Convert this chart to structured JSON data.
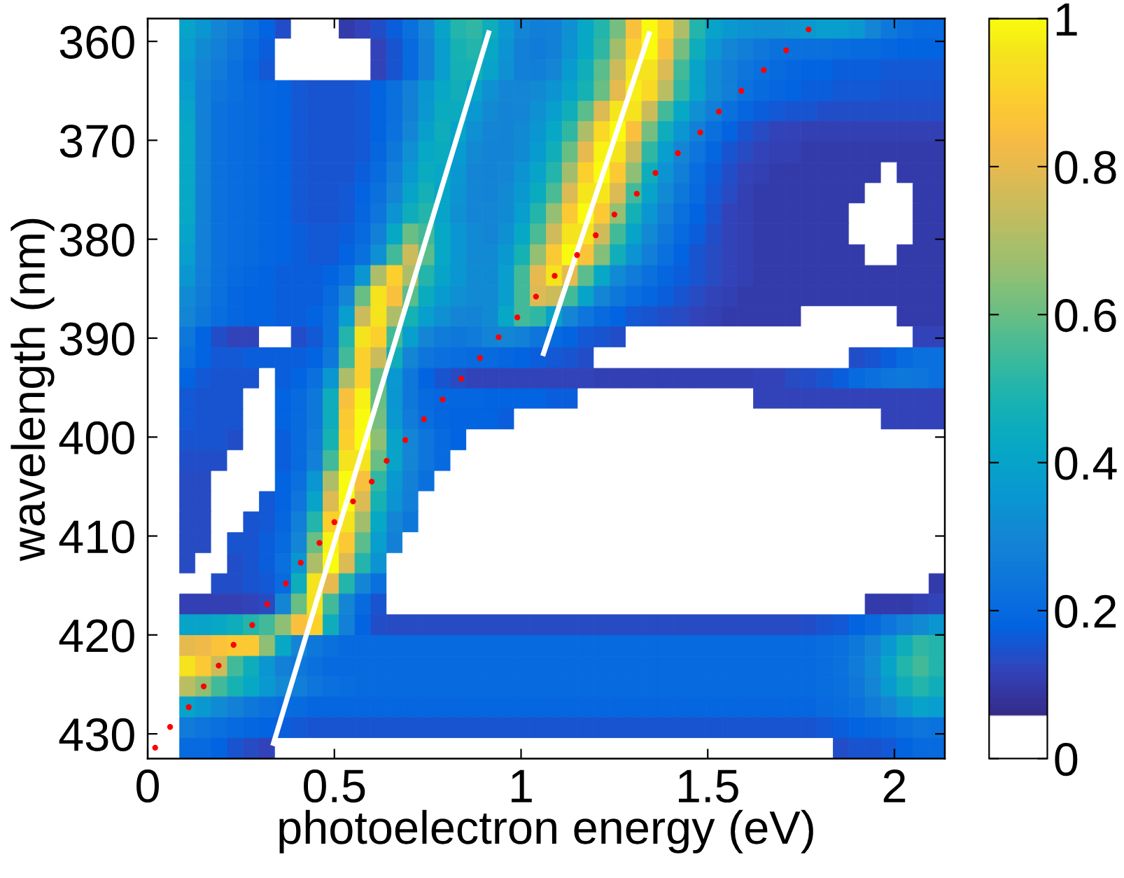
{
  "chart_data": {
    "type": "heatmap",
    "xlabel": "photoelectron energy (eV)",
    "ylabel": "wavelength (nm)",
    "x": [
      0.021,
      0.064,
      0.107,
      0.149,
      0.192,
      0.235,
      0.278,
      0.32,
      0.363,
      0.406,
      0.448,
      0.491,
      0.534,
      0.576,
      0.619,
      0.662,
      0.704,
      0.747,
      0.79,
      0.833,
      0.875,
      0.918,
      0.961,
      1.003,
      1.046,
      1.089,
      1.131,
      1.174,
      1.217,
      1.26,
      1.302,
      1.345,
      1.388,
      1.43,
      1.473,
      1.516,
      1.559,
      1.601,
      1.644,
      1.687,
      1.729,
      1.772,
      1.815,
      1.857,
      1.9,
      1.943,
      1.986,
      2.028,
      2.071,
      2.114
    ],
    "y": [
      358.7,
      360.8,
      362.9,
      365,
      367.1,
      369.1,
      371.2,
      373.3,
      375.4,
      377.4,
      379.5,
      381.6,
      383.7,
      385.8,
      387.8,
      389.9,
      392,
      394.1,
      396.1,
      398.2,
      400.3,
      402.4,
      404.5,
      406.5,
      408.6,
      410.7,
      412.8,
      414.8,
      416.9,
      419,
      421.1,
      423.2,
      425.2,
      427.3,
      429.4,
      431.5
    ],
    "xlim": [
      0,
      2.135
    ],
    "ylim": [
      432.5,
      357.7
    ],
    "xticks": [
      0,
      0.5,
      1,
      1.5,
      2
    ],
    "yticks": [
      360,
      370,
      380,
      390,
      400,
      410,
      420,
      430
    ],
    "clim": [
      0,
      1
    ],
    "cticks": [
      0,
      0.2,
      0.4,
      0.6,
      0.8,
      1
    ],
    "cells": [
      [
        0,
        0,
        0.4,
        0.35,
        0.3,
        0.26,
        0.22,
        0.18,
        0.14,
        0,
        0,
        0,
        0.1,
        0.12,
        0.14,
        0.17,
        0.22,
        0.3,
        0.4,
        0.5,
        0.52,
        0.45,
        0.36,
        0.3,
        0.27,
        0.28,
        0.33,
        0.42,
        0.5,
        0.62,
        0.85,
        1,
        0.9,
        0.7,
        0.5,
        0.4,
        0.36,
        0.34,
        0.33,
        0.33,
        0.34,
        0.36,
        0.38,
        0.38,
        0.36,
        0.3,
        0.25,
        0.22,
        0.2,
        0.2
      ],
      [
        0,
        0,
        0.38,
        0.32,
        0.28,
        0.24,
        0.2,
        0.17,
        0,
        0,
        0,
        0,
        0,
        0,
        0.12,
        0.15,
        0.2,
        0.28,
        0.38,
        0.48,
        0.5,
        0.42,
        0.34,
        0.28,
        0.26,
        0.28,
        0.34,
        0.42,
        0.52,
        0.68,
        0.9,
        1,
        0.85,
        0.62,
        0.45,
        0.35,
        0.3,
        0.27,
        0.25,
        0.23,
        0.22,
        0.22,
        0.22,
        0.21,
        0.2,
        0.2,
        0.19,
        0.18,
        0.18,
        0.18
      ],
      [
        0,
        0,
        0.36,
        0.3,
        0.26,
        0.22,
        0.19,
        0.16,
        0,
        0,
        0,
        0,
        0,
        0,
        0.12,
        0.15,
        0.2,
        0.28,
        0.38,
        0.47,
        0.48,
        0.4,
        0.33,
        0.28,
        0.27,
        0.3,
        0.37,
        0.46,
        0.58,
        0.75,
        0.95,
        0.95,
        0.78,
        0.55,
        0.4,
        0.32,
        0.27,
        0.24,
        0.22,
        0.2,
        0.19,
        0.18,
        0.18,
        0.17,
        0.17,
        0.17,
        0.16,
        0.16,
        0.16,
        0.16
      ],
      [
        0,
        0,
        0.38,
        0.28,
        0.24,
        0.22,
        0.2,
        0.19,
        0.18,
        0.16,
        0.15,
        0.15,
        0.15,
        0.16,
        0.18,
        0.22,
        0.28,
        0.35,
        0.42,
        0.46,
        0.4,
        0.33,
        0.3,
        0.3,
        0.31,
        0.34,
        0.4,
        0.48,
        0.6,
        0.8,
        0.97,
        0.92,
        0.72,
        0.52,
        0.4,
        0.32,
        0.27,
        0.23,
        0.2,
        0.19,
        0.18,
        0.17,
        0.17,
        0.16,
        0.16,
        0.16,
        0.15,
        0.15,
        0.15,
        0.15
      ],
      [
        0,
        0,
        0.4,
        0.28,
        0.23,
        0.21,
        0.2,
        0.19,
        0.18,
        0.16,
        0.15,
        0.15,
        0.15,
        0.16,
        0.18,
        0.22,
        0.28,
        0.36,
        0.44,
        0.44,
        0.36,
        0.31,
        0.29,
        0.3,
        0.33,
        0.38,
        0.46,
        0.58,
        0.78,
        0.96,
        0.95,
        0.75,
        0.55,
        0.42,
        0.33,
        0.27,
        0.22,
        0.19,
        0.17,
        0.16,
        0.15,
        0.15,
        0.14,
        0.14,
        0.14,
        0.14,
        0.14,
        0.14,
        0.14,
        0.14
      ],
      [
        0,
        0,
        0.42,
        0.28,
        0.23,
        0.21,
        0.2,
        0.19,
        0.18,
        0.16,
        0.15,
        0.15,
        0.15,
        0.16,
        0.18,
        0.23,
        0.3,
        0.39,
        0.45,
        0.4,
        0.33,
        0.3,
        0.29,
        0.31,
        0.35,
        0.42,
        0.52,
        0.7,
        0.92,
        1,
        0.85,
        0.62,
        0.45,
        0.35,
        0.28,
        0.22,
        0.18,
        0.15,
        0.13,
        0.12,
        0.12,
        0.11,
        0.11,
        0.11,
        0.11,
        0.11,
        0.11,
        0.11,
        0.11,
        0.11
      ],
      [
        0,
        0,
        0.42,
        0.28,
        0.23,
        0.21,
        0.2,
        0.19,
        0.18,
        0.16,
        0.15,
        0.15,
        0.15,
        0.16,
        0.19,
        0.25,
        0.33,
        0.42,
        0.44,
        0.37,
        0.31,
        0.29,
        0.29,
        0.32,
        0.37,
        0.46,
        0.6,
        0.8,
        0.98,
        0.96,
        0.75,
        0.52,
        0.38,
        0.3,
        0.24,
        0.19,
        0.15,
        0.13,
        0.12,
        0.11,
        0.11,
        0.1,
        0.1,
        0.1,
        0.1,
        0.1,
        0.1,
        0.1,
        0.1,
        0.1
      ],
      [
        0,
        0,
        0.42,
        0.28,
        0.23,
        0.21,
        0.2,
        0.19,
        0.18,
        0.16,
        0.15,
        0.15,
        0.15,
        0.17,
        0.2,
        0.27,
        0.36,
        0.44,
        0.42,
        0.35,
        0.3,
        0.29,
        0.3,
        0.34,
        0.4,
        0.5,
        0.68,
        0.9,
        1,
        0.88,
        0.65,
        0.45,
        0.34,
        0.27,
        0.21,
        0.17,
        0.14,
        0.12,
        0.11,
        0.1,
        0.1,
        0.1,
        0.1,
        0.1,
        0.1,
        0.1,
        0,
        0.1,
        0.1,
        0.1
      ],
      [
        0,
        0,
        0.42,
        0.28,
        0.23,
        0.21,
        0.2,
        0.19,
        0.18,
        0.16,
        0.15,
        0.15,
        0.16,
        0.18,
        0.22,
        0.3,
        0.4,
        0.47,
        0.41,
        0.34,
        0.3,
        0.29,
        0.31,
        0.36,
        0.44,
        0.56,
        0.78,
        0.96,
        0.96,
        0.78,
        0.55,
        0.4,
        0.31,
        0.25,
        0.2,
        0.16,
        0.13,
        0.11,
        0.1,
        0.1,
        0.1,
        0.1,
        0.1,
        0.1,
        0.1,
        0,
        0,
        0,
        0.1,
        0.1
      ],
      [
        0,
        0,
        0.42,
        0.28,
        0.23,
        0.21,
        0.2,
        0.19,
        0.18,
        0.16,
        0.15,
        0.15,
        0.16,
        0.19,
        0.24,
        0.34,
        0.45,
        0.5,
        0.4,
        0.33,
        0.3,
        0.3,
        0.32,
        0.38,
        0.5,
        0.66,
        0.88,
        1,
        0.88,
        0.66,
        0.47,
        0.35,
        0.28,
        0.22,
        0.18,
        0.15,
        0.12,
        0.11,
        0.1,
        0.1,
        0.1,
        0.1,
        0.1,
        0.1,
        0,
        0,
        0,
        0,
        0.1,
        0.1
      ],
      [
        0,
        0,
        0.4,
        0.28,
        0.23,
        0.21,
        0.2,
        0.19,
        0.18,
        0.17,
        0.16,
        0.16,
        0.17,
        0.2,
        0.28,
        0.42,
        0.6,
        0.55,
        0.42,
        0.35,
        0.31,
        0.3,
        0.33,
        0.42,
        0.56,
        0.76,
        0.95,
        0.95,
        0.76,
        0.55,
        0.4,
        0.31,
        0.25,
        0.2,
        0.17,
        0.14,
        0.12,
        0.11,
        0.1,
        0.1,
        0.1,
        0.1,
        0.1,
        0.1,
        0,
        0,
        0,
        0,
        0.1,
        0.1
      ],
      [
        0,
        0,
        0.38,
        0.28,
        0.23,
        0.21,
        0.2,
        0.19,
        0.18,
        0.17,
        0.16,
        0.16,
        0.18,
        0.22,
        0.33,
        0.55,
        0.75,
        0.58,
        0.42,
        0.35,
        0.31,
        0.31,
        0.36,
        0.48,
        0.66,
        0.88,
        1,
        0.86,
        0.64,
        0.46,
        0.34,
        0.27,
        0.22,
        0.18,
        0.15,
        0.13,
        0.12,
        0.11,
        0.1,
        0.1,
        0.1,
        0.1,
        0.1,
        0.1,
        0.1,
        0,
        0,
        0.1,
        0.1,
        0.1
      ],
      [
        0,
        0,
        0.35,
        0.27,
        0.23,
        0.2,
        0.19,
        0.18,
        0.17,
        0.17,
        0.17,
        0.18,
        0.22,
        0.35,
        0.7,
        0.9,
        0.7,
        0.5,
        0.4,
        0.35,
        0.32,
        0.32,
        0.38,
        0.55,
        0.8,
        0.95,
        0.8,
        0.58,
        0.42,
        0.32,
        0.26,
        0.22,
        0.19,
        0.17,
        0.15,
        0.13,
        0.12,
        0.11,
        0.1,
        0.1,
        0.1,
        0.1,
        0.1,
        0.1,
        0.1,
        0.1,
        0.1,
        0.1,
        0.1,
        0.1
      ],
      [
        0,
        0,
        0.32,
        0.26,
        0.22,
        0.19,
        0.18,
        0.18,
        0.17,
        0.17,
        0.17,
        0.2,
        0.3,
        0.6,
        0.95,
        0.85,
        0.58,
        0.44,
        0.37,
        0.33,
        0.31,
        0.32,
        0.38,
        0.55,
        0.78,
        0.75,
        0.55,
        0.4,
        0.3,
        0.25,
        0.21,
        0.19,
        0.17,
        0.15,
        0.13,
        0.12,
        0.11,
        0.1,
        0.1,
        0.1,
        0.1,
        0.1,
        0.1,
        0.1,
        0.1,
        0.1,
        0.1,
        0.1,
        0.1,
        0.1
      ],
      [
        0,
        0,
        0.3,
        0.25,
        0.21,
        0.19,
        0.18,
        0.18,
        0.17,
        0.17,
        0.18,
        0.22,
        0.38,
        0.75,
        0.95,
        0.7,
        0.48,
        0.38,
        0.33,
        0.3,
        0.29,
        0.32,
        0.42,
        0.55,
        0.52,
        0.4,
        0.3,
        0.24,
        0.2,
        0.18,
        0.16,
        0.15,
        0.14,
        0.13,
        0.12,
        0.11,
        0.1,
        0.1,
        0.1,
        0.1,
        0.1,
        0,
        0,
        0,
        0,
        0,
        0,
        0.1,
        0.1,
        0.1
      ],
      [
        0,
        0,
        0.25,
        0.18,
        0.14,
        0.12,
        0.12,
        0,
        0,
        0.14,
        0.16,
        0.22,
        0.5,
        0.95,
        0.9,
        0.55,
        0.38,
        0.3,
        0.26,
        0.25,
        0.26,
        0.29,
        0.3,
        0.28,
        0.24,
        0.2,
        0.18,
        0.16,
        0.15,
        0.14,
        0,
        0,
        0,
        0,
        0,
        0,
        0,
        0,
        0,
        0,
        0,
        0,
        0,
        0,
        0,
        0,
        0,
        0,
        0.12,
        0.12
      ],
      [
        0,
        0,
        0.22,
        0.18,
        0.16,
        0.16,
        0.17,
        0.17,
        0.17,
        0.17,
        0.18,
        0.25,
        0.55,
        0.9,
        0.75,
        0.45,
        0.3,
        0.24,
        0.22,
        0.21,
        0.2,
        0.2,
        0.19,
        0.18,
        0.17,
        0.16,
        0.15,
        0.14,
        0,
        0,
        0,
        0,
        0,
        0,
        0,
        0,
        0,
        0,
        0,
        0,
        0,
        0,
        0,
        0,
        0.14,
        0.15,
        0.17,
        0.2,
        0.22,
        0.22
      ],
      [
        0,
        0,
        0.18,
        0.16,
        0.15,
        0.15,
        0.15,
        0,
        0.17,
        0.18,
        0.22,
        0.35,
        0.7,
        0.9,
        0.6,
        0.36,
        0.25,
        0.18,
        0.15,
        0.13,
        0.12,
        0.12,
        0.12,
        0.12,
        0.12,
        0.12,
        0.12,
        0.12,
        0.11,
        0.11,
        0.11,
        0.11,
        0.11,
        0.11,
        0.11,
        0.11,
        0.11,
        0.11,
        0.12,
        0.12,
        0.13,
        0.14,
        0.15,
        0.17,
        0.2,
        0.22,
        0.24,
        0.25,
        0.24,
        0.22
      ],
      [
        0,
        0,
        0.16,
        0.15,
        0.15,
        0.15,
        0,
        0,
        0.18,
        0.2,
        0.25,
        0.45,
        0.85,
        0.98,
        0.6,
        0.35,
        0.25,
        0.2,
        0.19,
        0.19,
        0.19,
        0.18,
        0.18,
        0.18,
        0.18,
        0.17,
        0.17,
        0,
        0,
        0,
        0,
        0,
        0,
        0,
        0,
        0,
        0,
        0,
        0.12,
        0.12,
        0.12,
        0.12,
        0.12,
        0.12,
        0.12,
        0.12,
        0.12,
        0.12,
        0.12,
        0.12
      ],
      [
        0,
        0,
        0.16,
        0.15,
        0.15,
        0.15,
        0,
        0,
        0.18,
        0.2,
        0.25,
        0.45,
        0.88,
        1,
        0.62,
        0.36,
        0.26,
        0.21,
        0.19,
        0.18,
        0.18,
        0.18,
        0.17,
        0,
        0,
        0,
        0,
        0,
        0,
        0,
        0,
        0,
        0,
        0,
        0,
        0,
        0,
        0,
        0,
        0,
        0,
        0,
        0,
        0,
        0,
        0,
        0.12,
        0.12,
        0.12,
        0.12
      ],
      [
        0,
        0,
        0.15,
        0.15,
        0.15,
        0.14,
        0,
        0,
        0.17,
        0.2,
        0.26,
        0.48,
        0.9,
        1,
        0.65,
        0.4,
        0.3,
        0.24,
        0.2,
        0.18,
        0,
        0,
        0,
        0,
        0,
        0,
        0,
        0,
        0,
        0,
        0,
        0,
        0,
        0,
        0,
        0,
        0,
        0,
        0,
        0,
        0,
        0,
        0,
        0,
        0,
        0,
        0,
        0,
        0,
        0
      ],
      [
        0,
        0,
        0.14,
        0.14,
        0.14,
        0,
        0,
        0,
        0.17,
        0.2,
        0.28,
        0.55,
        0.95,
        0.95,
        0.6,
        0.4,
        0.3,
        0.24,
        0.2,
        0,
        0,
        0,
        0,
        0,
        0,
        0,
        0,
        0,
        0,
        0,
        0,
        0,
        0,
        0,
        0,
        0,
        0,
        0,
        0,
        0,
        0,
        0,
        0,
        0,
        0,
        0,
        0,
        0,
        0,
        0
      ],
      [
        0,
        0,
        0.13,
        0.13,
        0,
        0,
        0,
        0,
        0.18,
        0.22,
        0.35,
        0.7,
        1,
        0.85,
        0.52,
        0.36,
        0.28,
        0.22,
        0,
        0,
        0,
        0,
        0,
        0,
        0,
        0,
        0,
        0,
        0,
        0,
        0,
        0,
        0,
        0,
        0,
        0,
        0,
        0,
        0,
        0,
        0,
        0,
        0,
        0,
        0,
        0,
        0,
        0,
        0,
        0
      ],
      [
        0,
        0,
        0.13,
        0.13,
        0,
        0,
        0,
        0.16,
        0.18,
        0.24,
        0.4,
        0.78,
        1,
        0.78,
        0.48,
        0.34,
        0.27,
        0,
        0,
        0,
        0,
        0,
        0,
        0,
        0,
        0,
        0,
        0,
        0,
        0,
        0,
        0,
        0,
        0,
        0,
        0,
        0,
        0,
        0,
        0,
        0,
        0,
        0,
        0,
        0,
        0,
        0,
        0,
        0,
        0
      ],
      [
        0,
        0,
        0.13,
        0.13,
        0,
        0,
        0.15,
        0.16,
        0.19,
        0.27,
        0.5,
        0.9,
        0.95,
        0.68,
        0.42,
        0.3,
        0.25,
        0,
        0,
        0,
        0,
        0,
        0,
        0,
        0,
        0,
        0,
        0,
        0,
        0,
        0,
        0,
        0,
        0,
        0,
        0,
        0,
        0,
        0,
        0,
        0,
        0,
        0,
        0,
        0,
        0,
        0,
        0,
        0,
        0
      ],
      [
        0,
        0,
        0.13,
        0.13,
        0,
        0.15,
        0.15,
        0.17,
        0.2,
        0.3,
        0.6,
        0.98,
        0.88,
        0.58,
        0.38,
        0.28,
        0,
        0,
        0,
        0,
        0,
        0,
        0,
        0,
        0,
        0,
        0,
        0,
        0,
        0,
        0,
        0,
        0,
        0,
        0,
        0,
        0,
        0,
        0,
        0,
        0,
        0,
        0,
        0,
        0,
        0,
        0,
        0,
        0,
        0
      ],
      [
        0,
        0,
        0.13,
        0,
        0,
        0.14,
        0.15,
        0.17,
        0.22,
        0.35,
        0.7,
        1,
        0.78,
        0.5,
        0.34,
        0,
        0,
        0,
        0,
        0,
        0,
        0,
        0,
        0,
        0,
        0,
        0,
        0,
        0,
        0,
        0,
        0,
        0,
        0,
        0,
        0,
        0,
        0,
        0,
        0,
        0,
        0,
        0,
        0,
        0,
        0,
        0,
        0,
        0,
        0
      ],
      [
        0,
        0,
        0,
        0,
        0.14,
        0.14,
        0.15,
        0.16,
        0.2,
        0.45,
        0.95,
        0.8,
        0.5,
        0.3,
        0.22,
        0,
        0,
        0,
        0,
        0,
        0,
        0,
        0,
        0,
        0,
        0,
        0,
        0,
        0,
        0,
        0,
        0,
        0,
        0,
        0,
        0,
        0,
        0,
        0,
        0,
        0,
        0,
        0,
        0,
        0,
        0,
        0,
        0,
        0,
        0.1
      ],
      [
        0,
        0,
        0.11,
        0.11,
        0.11,
        0.11,
        0.12,
        0.13,
        0.3,
        0.6,
        0.95,
        0.55,
        0.3,
        0.2,
        0.15,
        0,
        0,
        0,
        0,
        0,
        0,
        0,
        0,
        0,
        0,
        0,
        0,
        0,
        0,
        0,
        0,
        0,
        0,
        0,
        0,
        0,
        0,
        0,
        0,
        0,
        0,
        0,
        0,
        0,
        0,
        0.1,
        0.1,
        0.1,
        0.11,
        0.12
      ],
      [
        0,
        0,
        0.4,
        0.4,
        0.42,
        0.45,
        0.5,
        0.55,
        0.65,
        0.85,
        0.9,
        0.45,
        0.28,
        0.18,
        0.14,
        0.13,
        0.13,
        0.13,
        0.13,
        0.13,
        0.13,
        0.13,
        0.13,
        0.13,
        0.13,
        0.13,
        0.13,
        0.13,
        0.13,
        0.13,
        0.13,
        0.13,
        0.13,
        0.13,
        0.13,
        0.13,
        0.13,
        0.13,
        0.13,
        0.13,
        0.13,
        0.14,
        0.15,
        0.16,
        0.18,
        0.2,
        0.24,
        0.28,
        0.32,
        0.35
      ],
      [
        0,
        0,
        0.8,
        0.82,
        0.86,
        0.88,
        0.88,
        0.65,
        0.42,
        0.3,
        0.25,
        0.22,
        0.2,
        0.2,
        0.2,
        0.2,
        0.2,
        0.2,
        0.2,
        0.2,
        0.2,
        0.2,
        0.2,
        0.2,
        0.2,
        0.2,
        0.2,
        0.2,
        0.2,
        0.2,
        0.2,
        0.2,
        0.2,
        0.2,
        0.2,
        0.2,
        0.2,
        0.2,
        0.2,
        0.2,
        0.2,
        0.2,
        0.21,
        0.22,
        0.25,
        0.3,
        0.36,
        0.45,
        0.52,
        0.5
      ],
      [
        0,
        0,
        0.95,
        0.88,
        0.75,
        0.55,
        0.45,
        0.35,
        0.28,
        0.25,
        0.22,
        0.2,
        0.2,
        0.2,
        0.2,
        0.2,
        0.2,
        0.2,
        0.2,
        0.2,
        0.2,
        0.2,
        0.2,
        0.2,
        0.2,
        0.2,
        0.2,
        0.2,
        0.2,
        0.2,
        0.2,
        0.2,
        0.2,
        0.2,
        0.2,
        0.2,
        0.2,
        0.2,
        0.2,
        0.2,
        0.2,
        0.2,
        0.21,
        0.23,
        0.26,
        0.32,
        0.4,
        0.5,
        0.55,
        0.5
      ],
      [
        0,
        0,
        0.72,
        0.65,
        0.55,
        0.48,
        0.42,
        0.36,
        0.31,
        0.27,
        0.24,
        0.22,
        0.21,
        0.2,
        0.2,
        0.2,
        0.2,
        0.2,
        0.2,
        0.2,
        0.2,
        0.2,
        0.2,
        0.2,
        0.2,
        0.2,
        0.2,
        0.2,
        0.2,
        0.2,
        0.2,
        0.2,
        0.2,
        0.2,
        0.2,
        0.2,
        0.2,
        0.2,
        0.2,
        0.2,
        0.2,
        0.2,
        0.21,
        0.22,
        0.25,
        0.3,
        0.37,
        0.45,
        0.5,
        0.46
      ],
      [
        0,
        0,
        0.4,
        0.36,
        0.32,
        0.28,
        0.25,
        0.23,
        0.21,
        0.2,
        0.19,
        0.19,
        0.19,
        0.19,
        0.19,
        0.19,
        0.19,
        0.19,
        0.19,
        0.19,
        0.19,
        0.19,
        0.19,
        0.19,
        0.19,
        0.19,
        0.19,
        0.19,
        0.19,
        0.19,
        0.19,
        0.19,
        0.19,
        0.19,
        0.19,
        0.19,
        0.19,
        0.19,
        0.19,
        0.19,
        0.19,
        0.19,
        0.2,
        0.21,
        0.23,
        0.26,
        0.3,
        0.35,
        0.4,
        0.38
      ],
      [
        0,
        0,
        0.26,
        0.24,
        0.22,
        0.2,
        0.19,
        0.18,
        0.17,
        0.16,
        0.15,
        0.15,
        0.15,
        0.15,
        0.15,
        0.15,
        0.15,
        0.15,
        0.15,
        0.15,
        0.15,
        0.15,
        0.15,
        0.15,
        0.15,
        0.15,
        0.15,
        0.15,
        0.15,
        0.15,
        0.15,
        0.15,
        0.15,
        0.15,
        0.15,
        0.15,
        0.15,
        0.15,
        0.15,
        0.15,
        0.15,
        0.15,
        0.16,
        0.17,
        0.18,
        0.19,
        0.2,
        0.22,
        0.24,
        0.23
      ],
      [
        0,
        0,
        0.2,
        0.2,
        0.18,
        0.15,
        0.13,
        0.12,
        0,
        0,
        0,
        0,
        0,
        0,
        0,
        0,
        0,
        0,
        0,
        0,
        0,
        0,
        0,
        0,
        0,
        0,
        0,
        0,
        0,
        0,
        0,
        0,
        0,
        0,
        0,
        0,
        0,
        0,
        0,
        0,
        0,
        0,
        0,
        0.14,
        0.15,
        0.15,
        0.16,
        0.18,
        0.2,
        0.2
      ]
    ],
    "series": [
      {
        "type": "line",
        "x": [
          0.915,
          0.335
        ],
        "values": [
          358.9,
          431.2
        ],
        "color": "#ffffff"
      },
      {
        "type": "line",
        "x": [
          1.345,
          1.058
        ],
        "values": [
          359,
          391.8
        ],
        "color": "#ffffff"
      },
      {
        "type": "scatter",
        "marker": "circle",
        "color": "#ff0000",
        "x": [
          1.77,
          1.71,
          1.65,
          1.59,
          1.53,
          1.48,
          1.42,
          1.36,
          1.31,
          1.25,
          1.2,
          1.15,
          1.09,
          1.04,
          0.99,
          0.94,
          0.89,
          0.84,
          0.79,
          0.74,
          0.69,
          0.64,
          0.6,
          0.55,
          0.5,
          0.46,
          0.41,
          0.37,
          0.32,
          0.28,
          0.23,
          0.19,
          0.15,
          0.11,
          0.06,
          0.02
        ],
        "values": [
          358.8,
          360.9,
          362.9,
          365,
          367.1,
          369.2,
          371.3,
          373.3,
          375.4,
          377.5,
          379.6,
          381.6,
          383.7,
          385.8,
          387.9,
          389.9,
          392,
          394.1,
          396.2,
          398.2,
          400.3,
          402.4,
          404.5,
          406.5,
          408.6,
          410.7,
          412.7,
          414.8,
          416.9,
          419,
          421,
          423.1,
          425.2,
          427.3,
          429.3,
          431.4
        ]
      }
    ]
  }
}
